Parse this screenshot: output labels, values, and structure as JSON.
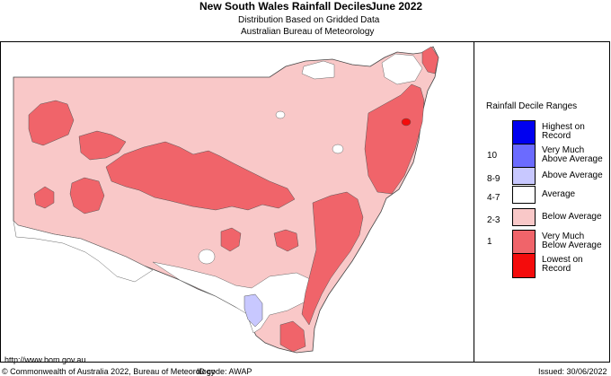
{
  "header": {
    "title": "New South Wales Rainfall Deciles",
    "month": "June 2022",
    "subtitle_line1": "Distribution Based on Gridded Data",
    "subtitle_line2": "Australian Bureau of Meteorology"
  },
  "legend": {
    "title": "Rainfall Decile Ranges",
    "items": [
      {
        "code": "",
        "label": "Highest on Record",
        "label_lines": [
          "Highest on",
          "Record"
        ],
        "color": "#0000f0"
      },
      {
        "code": "10",
        "label": "Very Much Above Average",
        "label_lines": [
          "Very Much",
          "Above Average"
        ],
        "color": "#6b6bff"
      },
      {
        "code": "8-9",
        "label": "Above Average",
        "label_lines": [
          "Above Average"
        ],
        "color": "#c8c8ff"
      },
      {
        "code": "4-7",
        "label": "Average",
        "label_lines": [
          "Average"
        ],
        "color": "#ffffff"
      },
      {
        "code": "2-3",
        "label": "Below Average",
        "label_lines": [
          "Below Average"
        ],
        "color": "#f9c8c8"
      },
      {
        "code": "1",
        "label": "Very Much Below Average",
        "label_lines": [
          "Very Much",
          "Below Average"
        ],
        "color": "#f0646a"
      },
      {
        "code": "",
        "label": "Lowest on Record",
        "label_lines": [
          "Lowest on",
          "Record"
        ],
        "color": "#f40c0c"
      }
    ]
  },
  "footer": {
    "url": "http://www.bom.gov.au",
    "copyright": "© Commonwealth of Australia 2022, Bureau of Meteorology",
    "id_code": "ID code: AWAP",
    "issued": "Issued: 30/06/2022"
  },
  "map": {
    "region": "New South Wales",
    "dominant_category": "Below Average"
  }
}
